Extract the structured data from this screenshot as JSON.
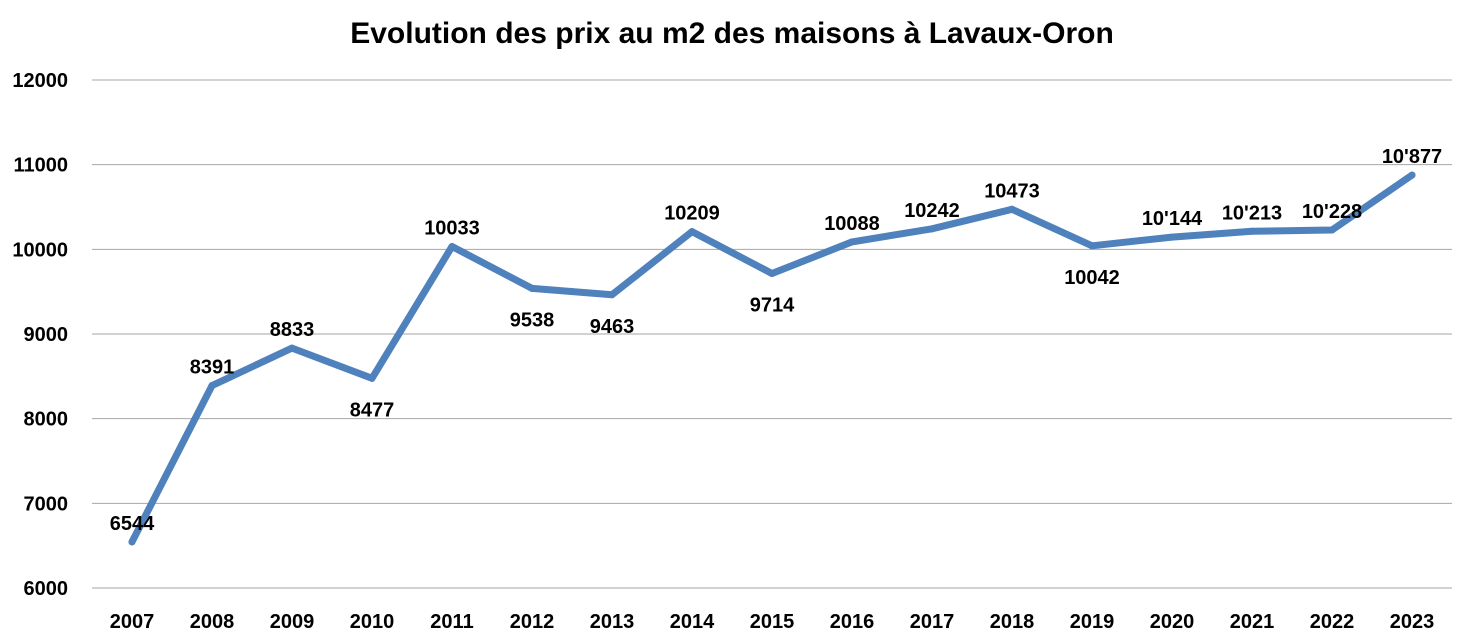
{
  "chart_data": {
    "type": "line",
    "title": "Evolution des prix au m2 des maisons à Lavaux-Oron",
    "xlabel": "",
    "ylabel": "",
    "categories": [
      "2007",
      "2008",
      "2009",
      "2010",
      "2011",
      "2012",
      "2013",
      "2014",
      "2015",
      "2016",
      "2017",
      "2018",
      "2019",
      "2020",
      "2021",
      "2022",
      "2023"
    ],
    "series": [
      {
        "values": [
          6544,
          8391,
          8833,
          8477,
          10033,
          9538,
          9463,
          10209,
          9714,
          10088,
          10242,
          10473,
          10042,
          10144,
          10213,
          10228,
          10877
        ],
        "labels": [
          "6544",
          "8391",
          "8833",
          "8477",
          "10033",
          "9538",
          "9463",
          "10209",
          "9714",
          "10088",
          "10242",
          "10473",
          "10042",
          "10'144",
          "10'213",
          "10'228",
          "10'877"
        ],
        "label_positions": [
          "above",
          "above",
          "above",
          "below",
          "above",
          "below",
          "below",
          "above",
          "below",
          "above",
          "above",
          "above",
          "below",
          "above",
          "above",
          "above",
          "above"
        ]
      }
    ],
    "ylim": [
      6000,
      12000
    ],
    "yticks": [
      6000,
      7000,
      8000,
      9000,
      10000,
      11000,
      12000
    ],
    "grid": true,
    "legend": "none",
    "colors": {
      "line": "#4f81bd",
      "grid": "#a6a6a6",
      "text": "#000000"
    }
  }
}
